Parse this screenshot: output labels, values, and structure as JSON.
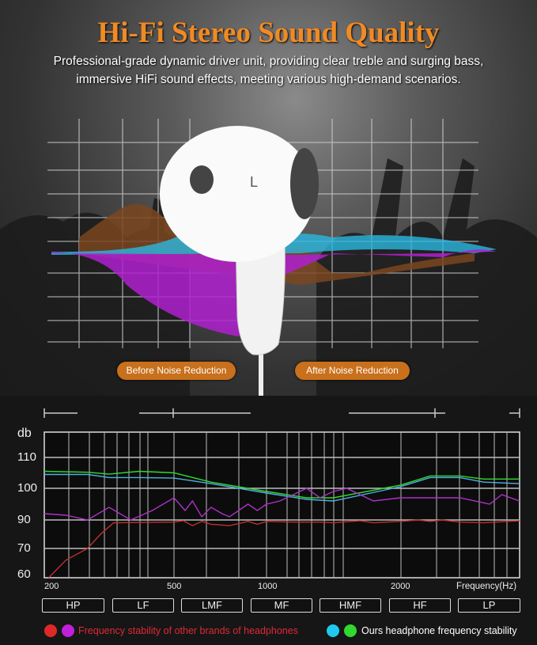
{
  "header": {
    "title": "Hi-Fi Stereo Sound Quality",
    "subtitle_line1": "Professional-grade dynamic driver unit, providing clear treble and surging bass,",
    "subtitle_line2": "immersive HiFi sound effects, meeting various high-demand scenarios."
  },
  "product": {
    "earbud_side_label": "L"
  },
  "badges": {
    "before": "Before Noise Reduction",
    "after": "After Noise Reduction"
  },
  "colors": {
    "title": "#f08a24",
    "badge": "#c8701c",
    "other_red": "#e02828",
    "other_purple": "#c020d8",
    "ours_cyan": "#20c8f0",
    "ours_green": "#30d830"
  },
  "chart_data": {
    "type": "line",
    "ylabel": "db",
    "xlabel": "Frequency(Hz)",
    "y_ticks": [
      60,
      70,
      90,
      100,
      110
    ],
    "x_ticks": [
      200,
      500,
      1000,
      2000
    ],
    "grid": true,
    "bands": [
      "HP",
      "LF",
      "LMF",
      "MF",
      "HMF",
      "HF",
      "LP"
    ],
    "series": [
      {
        "color": "#30d830",
        "x": [
          200,
          300,
          350,
          420,
          500,
          700,
          1000,
          1300,
          1500,
          2000,
          2500,
          3000,
          3400,
          4000
        ],
        "y": [
          105.5,
          105.2,
          104.6,
          105.5,
          105,
          102,
          99,
          97,
          97,
          101,
          104,
          104,
          103,
          103
        ]
      },
      {
        "color": "#4fb0e0",
        "x": [
          200,
          300,
          350,
          420,
          500,
          700,
          1000,
          1300,
          1500,
          2000,
          2500,
          3000,
          3400,
          4000
        ],
        "y": [
          104.5,
          104.5,
          103.5,
          103.5,
          103.3,
          101.5,
          98.5,
          96.5,
          96,
          100.5,
          103.5,
          103.5,
          102,
          101.5
        ]
      },
      {
        "color": "#b030c8",
        "x": [
          200,
          250,
          300,
          350,
          400,
          450,
          500,
          560,
          600,
          650,
          700,
          760,
          800,
          900,
          950,
          1000,
          1100,
          1200,
          1300,
          1400,
          1500,
          1600,
          1800,
          2000,
          2500,
          3000,
          3500,
          3700,
          4000
        ],
        "y": [
          92,
          91.5,
          90,
          94,
          90,
          93,
          97,
          93,
          96,
          91,
          94,
          92,
          91,
          95,
          93,
          95,
          96,
          98,
          100,
          97,
          99,
          100,
          96,
          97,
          97,
          97,
          95,
          98,
          96
        ]
      },
      {
        "color": "#c03030",
        "x": [
          210,
          250,
          300,
          330,
          360,
          500,
          550,
          600,
          650,
          700,
          800,
          900,
          950,
          1000,
          1200,
          1400,
          1500,
          1700,
          1800,
          2000,
          2300,
          2500,
          2700,
          3000,
          3400,
          4000
        ],
        "y": [
          60,
          66,
          70,
          80,
          88,
          88.5,
          89.5,
          86,
          89,
          87,
          86,
          89,
          87,
          89,
          88.5,
          88.5,
          88,
          89.5,
          88,
          89,
          90,
          89,
          90,
          88.5,
          88,
          89.5
        ]
      }
    ]
  },
  "legend": {
    "other": "Frequency stability of other brands of headphones",
    "ours": "Ours headphone frequency stability"
  }
}
